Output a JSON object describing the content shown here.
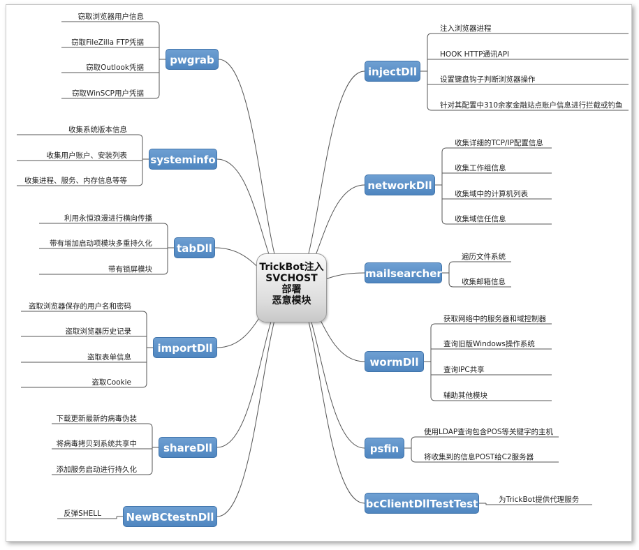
{
  "center": {
    "lines": [
      "TrickBot注入",
      "SVCHOST",
      "部署",
      "恶意模块"
    ]
  },
  "left": [
    {
      "label": "pwgrab",
      "leaves": [
        "窃取浏览器用户信息",
        "窃取FileZilla FTP凭据",
        "窃取Outlook凭据",
        "窃取WinSCP用户凭据"
      ]
    },
    {
      "label": "systeminfo",
      "leaves": [
        "收集系统版本信息",
        "收集用户账户、安装列表",
        "收集进程、服务、内存信息等等"
      ]
    },
    {
      "label": "tabDll",
      "leaves": [
        "利用永恒浪漫进行横向传播",
        "带有增加启动项模块多重持久化",
        "带有锁屏模块"
      ]
    },
    {
      "label": "importDll",
      "leaves": [
        "盗取浏览器保存的用户名和密码",
        "盗取浏览器历史记录",
        "盗取表单信息",
        "盗取Cookie"
      ]
    },
    {
      "label": "shareDll",
      "leaves": [
        "下载更新最新的病毒伪装",
        "将病毒拷贝到系统共享中",
        "添加服务启动进行持久化"
      ]
    },
    {
      "label": "NewBCtestnDll",
      "leaves": [
        "反弹SHELL"
      ]
    }
  ],
  "right": [
    {
      "label": "injectDll",
      "leaves": [
        "注入浏览器进程",
        "HOOK HTTP通讯API",
        "设置键盘钩子判断浏览器操作",
        "针对其配置中310余家金融站点账户信息进行拦截或钓鱼"
      ]
    },
    {
      "label": "networkDll",
      "leaves": [
        "收集详细的TCP/IP配置信息",
        "收集工作组信息",
        "收集域中的计算机列表",
        "收集域信任信息"
      ]
    },
    {
      "label": "mailsearcher",
      "leaves": [
        "遍历文件系统",
        "收集邮箱信息"
      ]
    },
    {
      "label": "wormDll",
      "leaves": [
        "获取网络中的服务器和域控制器",
        "查询旧版Windows操作系统",
        "查询IPC共享",
        "辅助其他模块"
      ]
    },
    {
      "label": "psfin",
      "leaves": [
        "使用LDAP查询包含POS等关键字的主机",
        "将收集到的信息POST给C2服务器"
      ]
    },
    {
      "label": "bcClientDllTestTest",
      "leaves": [
        "为TrickBot提供代理服务"
      ]
    }
  ],
  "colors": {
    "node": "#4f86c0",
    "line": "#555555",
    "leaf_text": "#222222"
  }
}
